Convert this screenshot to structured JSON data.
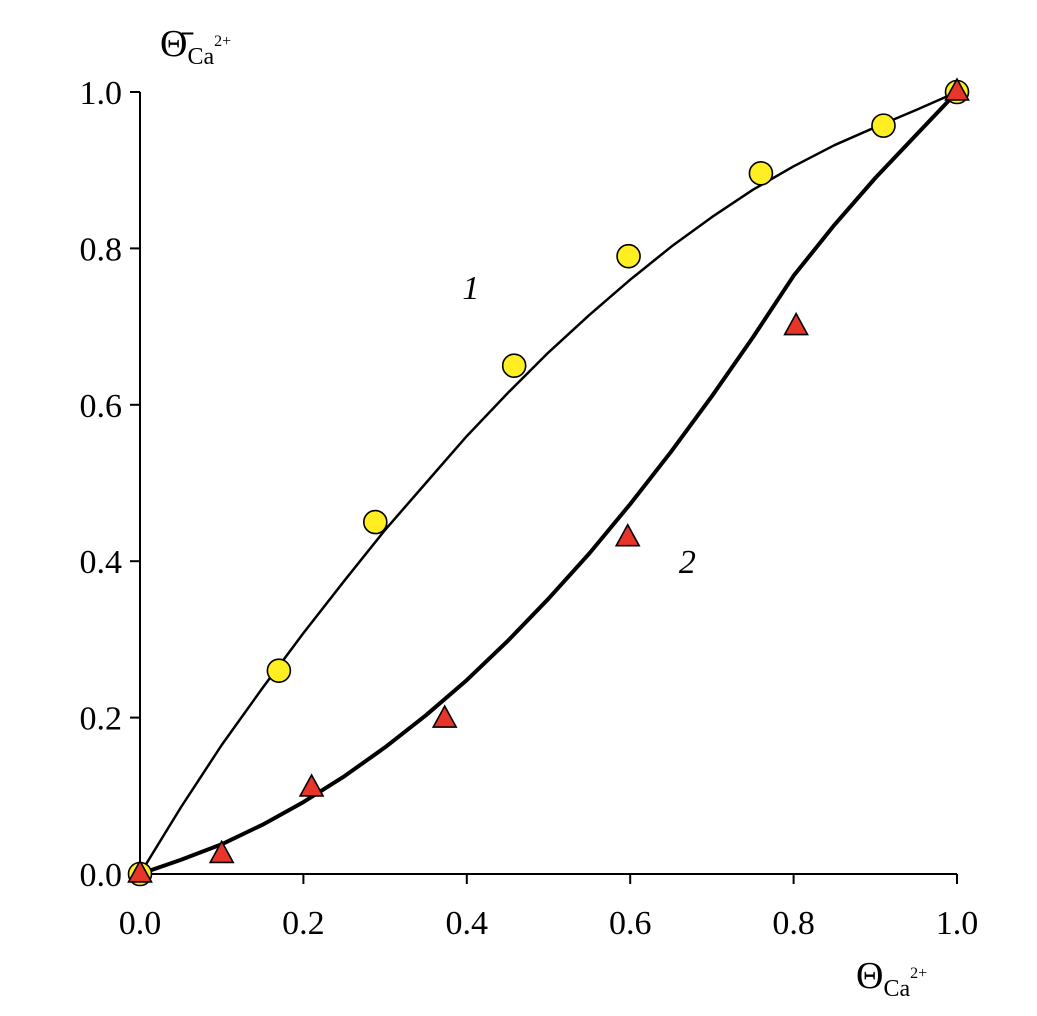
{
  "chart_data": {
    "type": "scatter",
    "title": "",
    "xlabel": {
      "symbol": "Θ",
      "subscript": "Ca",
      "superscript": "2+"
    },
    "ylabel": {
      "symbol": "Θ̄",
      "subscript": "Ca",
      "superscript": "2+"
    },
    "xlim": [
      0,
      1
    ],
    "ylim": [
      0,
      1
    ],
    "x_ticks": [
      "0.0",
      "0.2",
      "0.4",
      "0.6",
      "0.8",
      "1.0"
    ],
    "y_ticks": [
      "0.0",
      "0.2",
      "0.4",
      "0.6",
      "0.8",
      "1.0"
    ],
    "grid": false,
    "legend": "none",
    "series": [
      {
        "label": "1",
        "marker": "circle",
        "color": "#ffee22",
        "points": [
          [
            0,
            0
          ],
          [
            0.17,
            0.26
          ],
          [
            0.288,
            0.45
          ],
          [
            0.458,
            0.65
          ],
          [
            0.598,
            0.79
          ],
          [
            0.76,
            0.896
          ],
          [
            0.91,
            0.957
          ],
          [
            1.0,
            1.0
          ]
        ],
        "curve": [
          [
            0,
            0
          ],
          [
            0.05,
            0.085
          ],
          [
            0.1,
            0.165
          ],
          [
            0.15,
            0.238
          ],
          [
            0.2,
            0.308
          ],
          [
            0.25,
            0.375
          ],
          [
            0.3,
            0.44
          ],
          [
            0.35,
            0.5
          ],
          [
            0.4,
            0.56
          ],
          [
            0.45,
            0.615
          ],
          [
            0.5,
            0.667
          ],
          [
            0.55,
            0.715
          ],
          [
            0.6,
            0.76
          ],
          [
            0.65,
            0.802
          ],
          [
            0.7,
            0.84
          ],
          [
            0.75,
            0.875
          ],
          [
            0.8,
            0.905
          ],
          [
            0.85,
            0.932
          ],
          [
            0.9,
            0.955
          ],
          [
            0.95,
            0.977
          ],
          [
            1.0,
            1.0
          ]
        ]
      },
      {
        "label": "2",
        "marker": "triangle",
        "color": "#e8352a",
        "points": [
          [
            0,
            0
          ],
          [
            0.1,
            0.025
          ],
          [
            0.21,
            0.11
          ],
          [
            0.373,
            0.198
          ],
          [
            0.597,
            0.43
          ],
          [
            0.803,
            0.7
          ],
          [
            1.0,
            1.0
          ]
        ],
        "curve": [
          [
            0,
            0
          ],
          [
            0.05,
            0.018
          ],
          [
            0.1,
            0.038
          ],
          [
            0.15,
            0.063
          ],
          [
            0.2,
            0.092
          ],
          [
            0.25,
            0.125
          ],
          [
            0.3,
            0.162
          ],
          [
            0.35,
            0.203
          ],
          [
            0.4,
            0.248
          ],
          [
            0.45,
            0.298
          ],
          [
            0.5,
            0.352
          ],
          [
            0.55,
            0.41
          ],
          [
            0.6,
            0.473
          ],
          [
            0.65,
            0.54
          ],
          [
            0.7,
            0.611
          ],
          [
            0.75,
            0.686
          ],
          [
            0.8,
            0.765
          ],
          [
            0.85,
            0.83
          ],
          [
            0.9,
            0.89
          ],
          [
            0.95,
            0.945
          ],
          [
            1.0,
            1.0
          ]
        ]
      }
    ],
    "annotations": [
      {
        "text": "1",
        "x": 0.405,
        "y": 0.735
      },
      {
        "text": "2",
        "x": 0.67,
        "y": 0.385
      }
    ]
  }
}
